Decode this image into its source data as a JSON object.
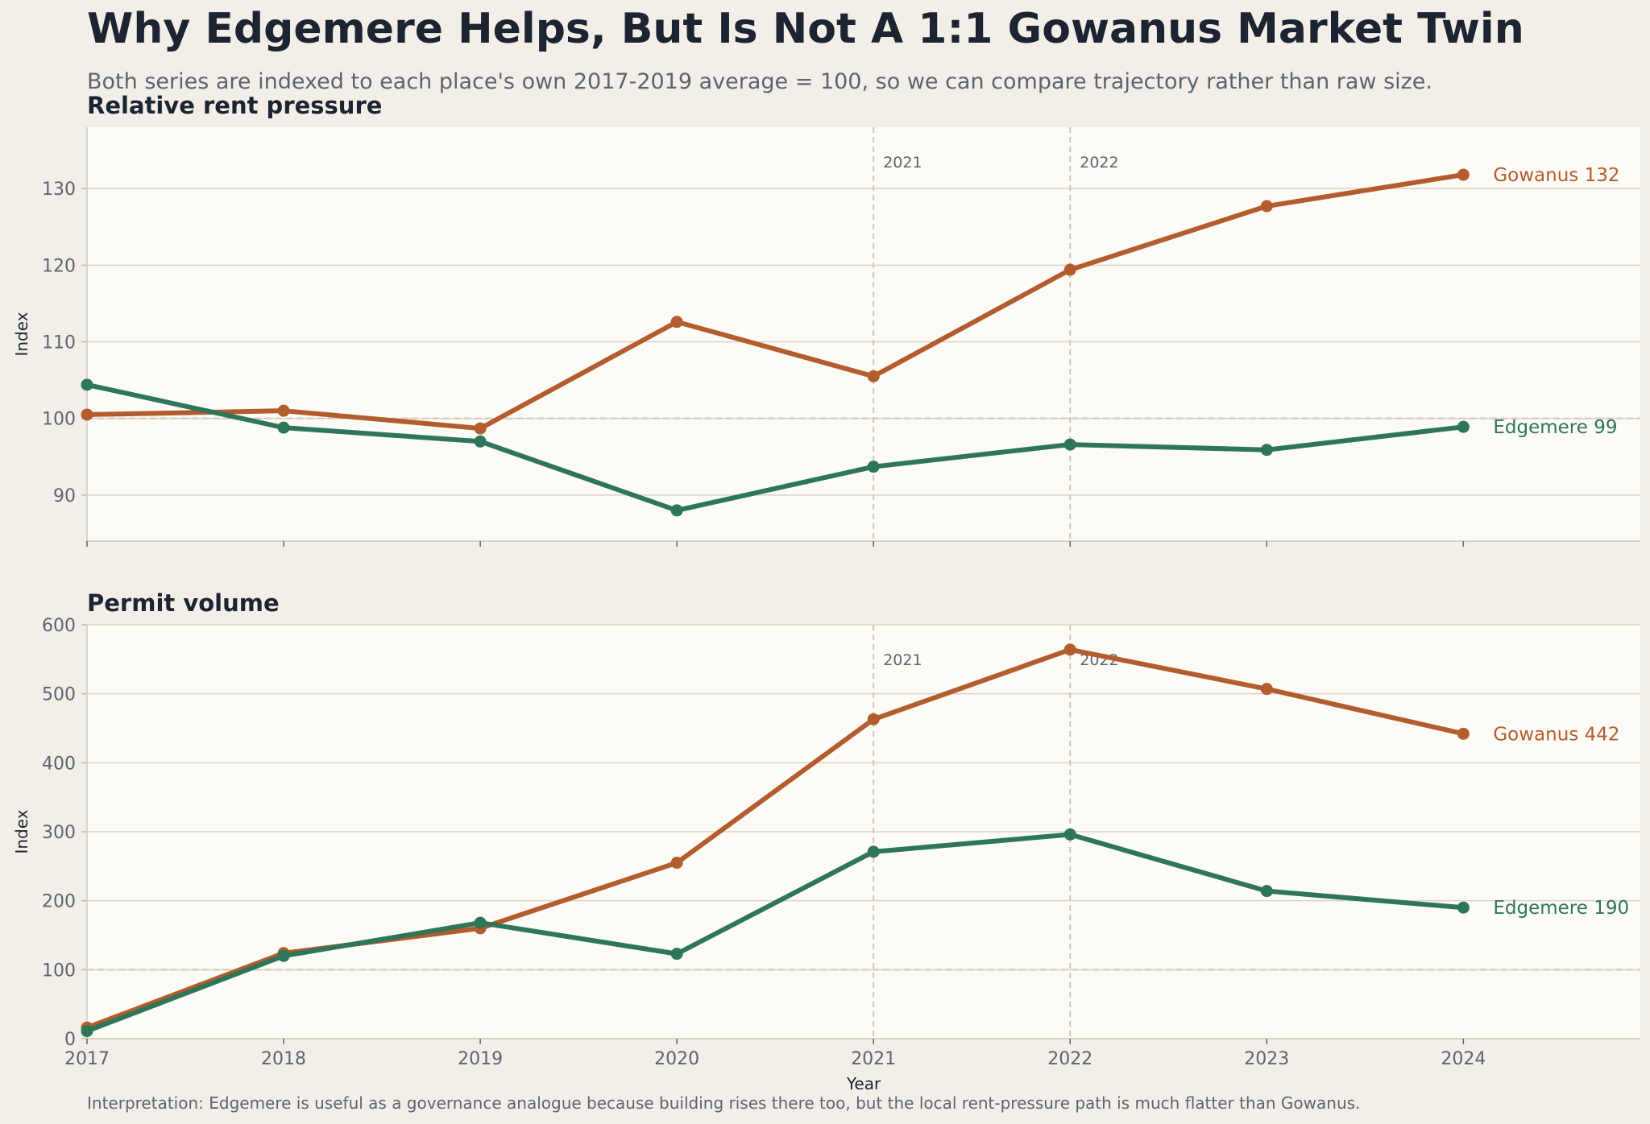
{
  "header": {
    "title": "Why Edgemere Helps, But Is Not A 1:1 Gowanus Market Twin",
    "subtitle": "Both series are indexed to each place's own 2017-2019 average = 100, so we can compare trajectory rather than raw size."
  },
  "footnote": "Interpretation: Edgemere is useful as a governance analogue because building rises there too, but the local rent-pressure path is much flatter than Gowanus.",
  "colors": {
    "gowanus": "#b35c2e",
    "edgemere": "#2e7658",
    "panel_bg": "#fdfbf6",
    "page_bg": "#f3efe8",
    "grid": "#d9d4c4",
    "event_line": "#cfc7b8"
  },
  "chart_data": [
    {
      "type": "line",
      "title": "Relative rent pressure",
      "xlabel": "",
      "ylabel": "Index",
      "x": [
        2017,
        2018,
        2019,
        2020,
        2021,
        2022,
        2023,
        2024
      ],
      "xlim": [
        2017,
        2024.9
      ],
      "ylim": [
        84,
        138
      ],
      "yticks": [
        90,
        100,
        110,
        120,
        130
      ],
      "xticks_labels_visible": false,
      "baseline": 100,
      "events": [
        {
          "x": 2021,
          "label": "2021"
        },
        {
          "x": 2022,
          "label": "2022"
        }
      ],
      "series": [
        {
          "name": "Gowanus",
          "color_key": "gowanus",
          "end_label": "Gowanus 132",
          "values": [
            100.5,
            101.0,
            98.7,
            112.6,
            105.5,
            119.4,
            127.7,
            131.8
          ]
        },
        {
          "name": "Edgemere",
          "color_key": "edgemere",
          "end_label": "Edgemere 99",
          "values": [
            104.4,
            98.8,
            97.0,
            88.0,
            93.7,
            96.6,
            95.9,
            98.9
          ]
        }
      ],
      "grid": true
    },
    {
      "type": "line",
      "title": "Permit volume",
      "xlabel": "Year",
      "ylabel": "Index",
      "x": [
        2017,
        2018,
        2019,
        2020,
        2021,
        2022,
        2023,
        2024
      ],
      "xlim": [
        2017,
        2024.9
      ],
      "ylim": [
        0,
        600
      ],
      "yticks": [
        0,
        100,
        200,
        300,
        400,
        500,
        600
      ],
      "xticks_labels_visible": true,
      "baseline": 100,
      "events": [
        {
          "x": 2021,
          "label": "2021"
        },
        {
          "x": 2022,
          "label": "2022"
        }
      ],
      "series": [
        {
          "name": "Gowanus",
          "color_key": "gowanus",
          "end_label": "Gowanus 442",
          "values": [
            16,
            124,
            160,
            255,
            463,
            564,
            507,
            442
          ]
        },
        {
          "name": "Edgemere",
          "color_key": "edgemere",
          "end_label": "Edgemere 190",
          "values": [
            11,
            120,
            168,
            123,
            271,
            296,
            214,
            190
          ]
        }
      ],
      "grid": true
    }
  ]
}
